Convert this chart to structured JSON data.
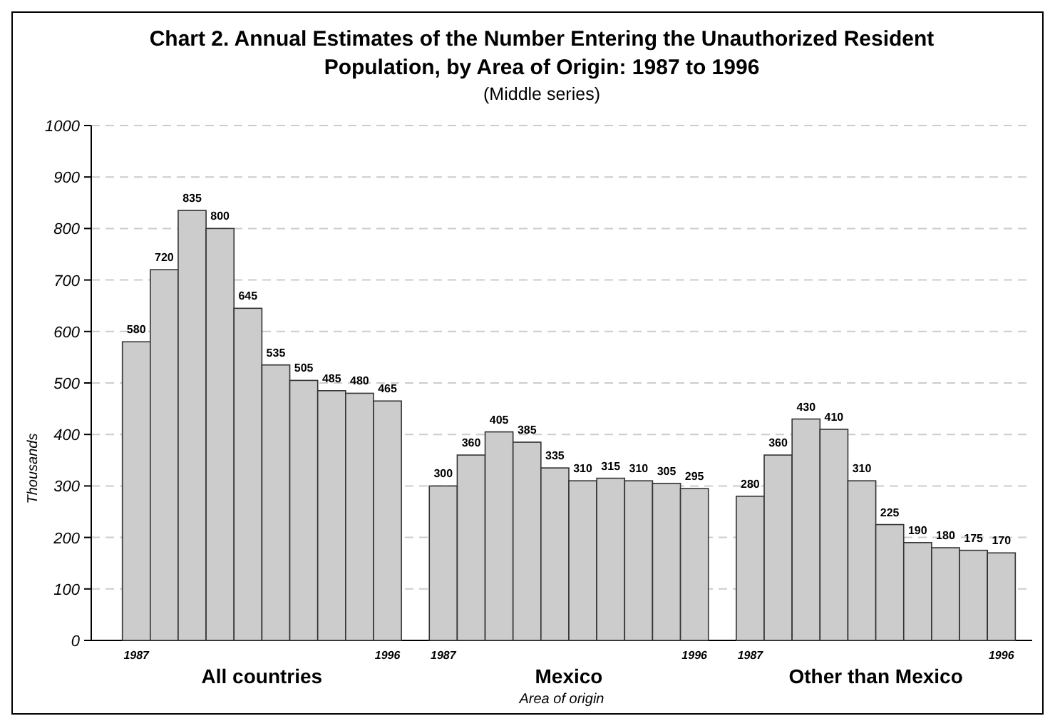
{
  "chart_data": {
    "type": "bar",
    "title": "Chart 2.  Annual Estimates of the Number Entering the Unauthorized Resident Population, by Area of Origin: 1987 to 1996",
    "subtitle": "(Middle series)",
    "ylabel": "Thousands",
    "xlabel": "Area of origin",
    "categories": [
      "1987",
      null,
      null,
      null,
      null,
      null,
      null,
      null,
      null,
      "1996",
      null,
      "1987",
      null,
      null,
      null,
      null,
      null,
      null,
      null,
      null,
      "1996",
      null,
      "1987",
      null,
      null,
      null,
      null,
      null,
      null,
      null,
      null,
      "1996"
    ],
    "values": [
      580,
      720,
      835,
      800,
      645,
      535,
      505,
      485,
      480,
      465,
      null,
      300,
      360,
      405,
      385,
      335,
      310,
      315,
      310,
      305,
      295,
      null,
      280,
      360,
      430,
      410,
      310,
      225,
      190,
      180,
      175,
      170
    ],
    "color": "#cccccc",
    "data_labels": true,
    "ylim": [
      0,
      1000
    ],
    "yticks": [
      0,
      100,
      200,
      300,
      400,
      500,
      600,
      700,
      800,
      900,
      1000
    ],
    "grid": "y",
    "annotations": [
      "All countries",
      "Mexico",
      "Other than Mexico"
    ]
  }
}
